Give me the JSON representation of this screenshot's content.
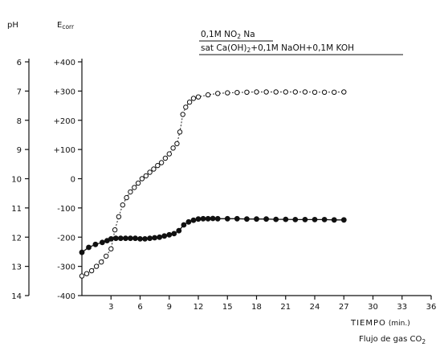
{
  "chart_data": {
    "type": "line",
    "xlabel": "TIEMPO",
    "xunit": "(min.)",
    "x_caption_prefix": "Flujo de gas CO",
    "x_caption_sub": "2",
    "left_axis_label": "pH",
    "right_axis_label_main": "E",
    "right_axis_label_sub": "corr",
    "xlim": [
      0,
      36
    ],
    "ylim": [
      -400,
      400
    ],
    "x_ticks": [
      3,
      6,
      9,
      12,
      15,
      18,
      21,
      24,
      27,
      30,
      33,
      36
    ],
    "e_ticks": [
      {
        "value": 400,
        "label": "+400"
      },
      {
        "value": 300,
        "label": "+300"
      },
      {
        "value": 200,
        "label": "+200"
      },
      {
        "value": 100,
        "label": "+100"
      },
      {
        "value": 0,
        "label": "0"
      },
      {
        "value": -100,
        "label": "-100"
      },
      {
        "value": -200,
        "label": "-200"
      },
      {
        "value": -300,
        "label": "-300"
      },
      {
        "value": -400,
        "label": "-400"
      }
    ],
    "ph_ticks": [
      {
        "pH": 6,
        "label": "6",
        "e": 400
      },
      {
        "pH": 7,
        "label": "7",
        "e": 300
      },
      {
        "pH": 8,
        "label": "8",
        "e": 200
      },
      {
        "pH": 9,
        "label": "9",
        "e": 100
      },
      {
        "pH": 10,
        "label": "10",
        "e": 0
      },
      {
        "pH": 11,
        "label": "11",
        "e": -100
      },
      {
        "pH": 12,
        "label": "12",
        "e": -200
      },
      {
        "pH": 13,
        "label": "13",
        "e": -300
      },
      {
        "pH": 14,
        "label": "14",
        "e": -400
      }
    ],
    "legend": {
      "open_label_parts": [
        "0,1M  NO",
        "2",
        " Na"
      ],
      "filled_label_parts": [
        "sat  Ca(OH)",
        "2",
        "+0,1M  NaOH+0,1M  KOH"
      ]
    },
    "series": [
      {
        "marker": "open",
        "points": [
          [
            0,
            -333
          ],
          [
            0.5,
            -325
          ],
          [
            1,
            -315
          ],
          [
            1.5,
            -300
          ],
          [
            2,
            -285
          ],
          [
            2.5,
            -265
          ],
          [
            3,
            -240
          ],
          [
            3.4,
            -175
          ],
          [
            3.8,
            -130
          ],
          [
            4.2,
            -90
          ],
          [
            4.6,
            -65
          ],
          [
            5,
            -45
          ],
          [
            5.4,
            -30
          ],
          [
            5.8,
            -15
          ],
          [
            6.2,
            0
          ],
          [
            6.6,
            10
          ],
          [
            7,
            22
          ],
          [
            7.4,
            33
          ],
          [
            7.8,
            45
          ],
          [
            8.2,
            55
          ],
          [
            8.6,
            70
          ],
          [
            9,
            85
          ],
          [
            9.4,
            105
          ],
          [
            9.8,
            120
          ],
          [
            10.1,
            160
          ],
          [
            10.4,
            220
          ],
          [
            10.7,
            245
          ],
          [
            11.1,
            262
          ],
          [
            11.5,
            275
          ],
          [
            12,
            280
          ],
          [
            13,
            287
          ],
          [
            14,
            292
          ],
          [
            15,
            294
          ],
          [
            16,
            295
          ],
          [
            17,
            296
          ],
          [
            18,
            297
          ],
          [
            19,
            297
          ],
          [
            20,
            297
          ],
          [
            21,
            297
          ],
          [
            22,
            297
          ],
          [
            23,
            297
          ],
          [
            24,
            296
          ],
          [
            25,
            296
          ],
          [
            26,
            296
          ],
          [
            27,
            297
          ]
        ]
      },
      {
        "marker": "filled",
        "points": [
          [
            0,
            -252
          ],
          [
            0.7,
            -235
          ],
          [
            1.4,
            -225
          ],
          [
            2.1,
            -218
          ],
          [
            2.6,
            -212
          ],
          [
            3,
            -206
          ],
          [
            3.5,
            -204
          ],
          [
            4,
            -204
          ],
          [
            4.5,
            -204
          ],
          [
            5,
            -204
          ],
          [
            5.5,
            -204
          ],
          [
            6,
            -206
          ],
          [
            6.5,
            -206
          ],
          [
            7,
            -204
          ],
          [
            7.5,
            -202
          ],
          [
            8,
            -200
          ],
          [
            8.5,
            -196
          ],
          [
            9,
            -192
          ],
          [
            9.5,
            -188
          ],
          [
            10,
            -178
          ],
          [
            10.5,
            -158
          ],
          [
            11,
            -148
          ],
          [
            11.5,
            -142
          ],
          [
            12,
            -138
          ],
          [
            12.5,
            -137
          ],
          [
            13,
            -137
          ],
          [
            13.5,
            -136
          ],
          [
            14,
            -137
          ],
          [
            15,
            -137
          ],
          [
            16,
            -137
          ],
          [
            17,
            -138
          ],
          [
            18,
            -138
          ],
          [
            19,
            -138
          ],
          [
            20,
            -139
          ],
          [
            21,
            -139
          ],
          [
            22,
            -140
          ],
          [
            23,
            -140
          ],
          [
            24,
            -140
          ],
          [
            25,
            -140
          ],
          [
            26,
            -141
          ],
          [
            27,
            -141
          ]
        ]
      }
    ]
  }
}
